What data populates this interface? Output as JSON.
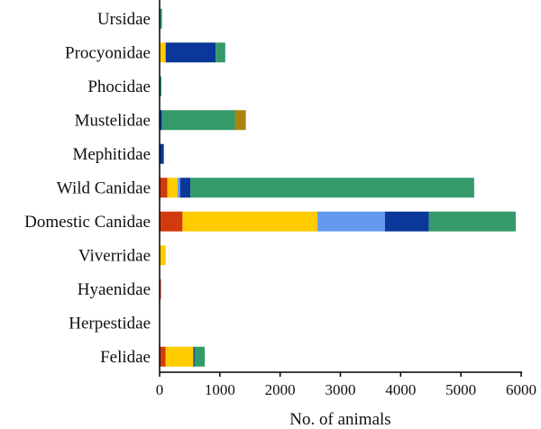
{
  "chart_data": {
    "type": "bar",
    "orientation": "horizontal",
    "stacked": true,
    "title": "",
    "xlabel": "No. of animals",
    "ylabel": "",
    "xlim": [
      0,
      6000
    ],
    "xticks": [
      0,
      1000,
      2000,
      3000,
      4000,
      5000,
      6000
    ],
    "grid": false,
    "legend": "none",
    "categories": [
      "Ursidae",
      "Procyonidae",
      "Phocidae",
      "Mustelidae",
      "Mephitidae",
      "Wild Canidae",
      "Domestic Canidae",
      "Viverridae",
      "Hyaenidae",
      "Herpestidae",
      "Felidae"
    ],
    "series": [
      {
        "color": "#d13a0c",
        "values": [
          0,
          0,
          0,
          0,
          0,
          130,
          380,
          0,
          20,
          0,
          100
        ]
      },
      {
        "color": "#ffcc00",
        "values": [
          0,
          100,
          0,
          0,
          0,
          170,
          2240,
          100,
          0,
          0,
          460
        ]
      },
      {
        "color": "#6699ee",
        "values": [
          0,
          0,
          0,
          0,
          0,
          40,
          1120,
          0,
          0,
          0,
          0
        ]
      },
      {
        "color": "#0a3799",
        "values": [
          0,
          830,
          0,
          40,
          70,
          170,
          730,
          0,
          0,
          0,
          20
        ]
      },
      {
        "color": "#359a6a",
        "values": [
          40,
          160,
          30,
          1210,
          0,
          4710,
          1440,
          0,
          0,
          0,
          170
        ]
      },
      {
        "color": "#a98412",
        "values": [
          0,
          0,
          0,
          180,
          0,
          0,
          0,
          0,
          0,
          0,
          0
        ]
      }
    ]
  }
}
